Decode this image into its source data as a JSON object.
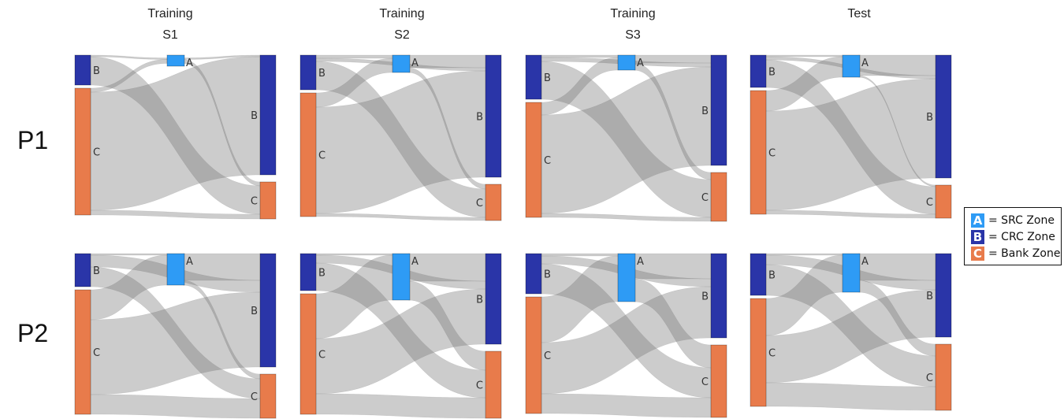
{
  "columns": [
    {
      "line1": "Training",
      "line2": "S1"
    },
    {
      "line1": "Training",
      "line2": "S2"
    },
    {
      "line1": "Training",
      "line2": "S3"
    },
    {
      "line1": "",
      "line2": "Test"
    }
  ],
  "rows": [
    "P1",
    "P2"
  ],
  "legend": [
    {
      "key": "A",
      "label": "= SRC Zone",
      "color": "#2e9bf5"
    },
    {
      "key": "B",
      "label": "= CRC Zone",
      "color": "#2a35a8"
    },
    {
      "key": "C",
      "label": "= Bank Zone",
      "color": "#e87b4b"
    }
  ],
  "chart_data": {
    "type": "sankey",
    "flow_keys": [
      "B>A",
      "B>B",
      "B>C",
      "C>A",
      "C>B",
      "C>C",
      "A>B",
      "A>C"
    ],
    "node_labels": {
      "left_B": "B",
      "left_C": "C",
      "mid_A": "A",
      "right_B": "B",
      "right_C": "C"
    },
    "panels": [
      {
        "row": "P1",
        "col": "Training S1",
        "flows": [
          2,
          0,
          36,
          5,
          150,
          6,
          2,
          5
        ]
      },
      {
        "row": "P1",
        "col": "Training S2",
        "flows": [
          4,
          4,
          36,
          18,
          135,
          4,
          16,
          6
        ]
      },
      {
        "row": "P1",
        "col": "Training S3",
        "flows": [
          3,
          5,
          48,
          16,
          125,
          5,
          10,
          9
        ]
      },
      {
        "row": "P1",
        "col": "Test",
        "flows": [
          2,
          4,
          35,
          26,
          126,
          5,
          26,
          2
        ]
      },
      {
        "row": "P2",
        "col": "Training S1",
        "flows": [
          2,
          15,
          25,
          38,
          95,
          25,
          34,
          6
        ]
      },
      {
        "row": "P2",
        "col": "Training S2",
        "flows": [
          2,
          10,
          35,
          57,
          70,
          26,
          35,
          24
        ]
      },
      {
        "row": "P2",
        "col": "Training S3",
        "flows": [
          3,
          10,
          38,
          58,
          65,
          25,
          32,
          29
        ]
      },
      {
        "row": "P2",
        "col": "Test",
        "flows": [
          2,
          12,
          39,
          47,
          60,
          30,
          34,
          15
        ]
      }
    ]
  }
}
